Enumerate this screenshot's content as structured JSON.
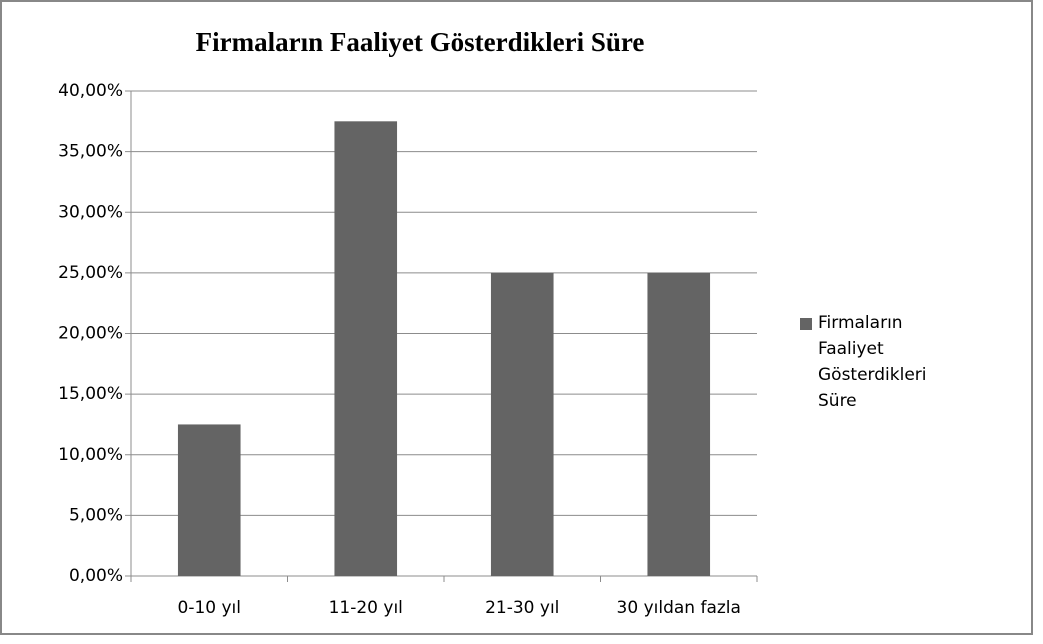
{
  "chart_data": {
    "type": "bar",
    "title": "Firmaların Faaliyet Gösterdikleri Süre",
    "categories": [
      "0-10 yıl",
      "11-20 yıl",
      "21-30 yıl",
      "30 yıldan fazla"
    ],
    "series": [
      {
        "name": "Firmaların Faaliyet Gösterdikleri Süre",
        "color": "#646464",
        "values": [
          12.5,
          37.5,
          25,
          25
        ]
      }
    ],
    "ylim": [
      0,
      40
    ],
    "yticks": [
      {
        "value": 0,
        "label": "0,00%"
      },
      {
        "value": 5,
        "label": "5,00%"
      },
      {
        "value": 10,
        "label": "10,00%"
      },
      {
        "value": 15,
        "label": "15,00%"
      },
      {
        "value": 20,
        "label": "20,00%"
      },
      {
        "value": 25,
        "label": "25,00%"
      },
      {
        "value": 30,
        "label": "30,00%"
      },
      {
        "value": 35,
        "label": "35,00%"
      },
      {
        "value": 40,
        "label": "40,00%"
      }
    ],
    "grid": true,
    "legend": "right"
  }
}
